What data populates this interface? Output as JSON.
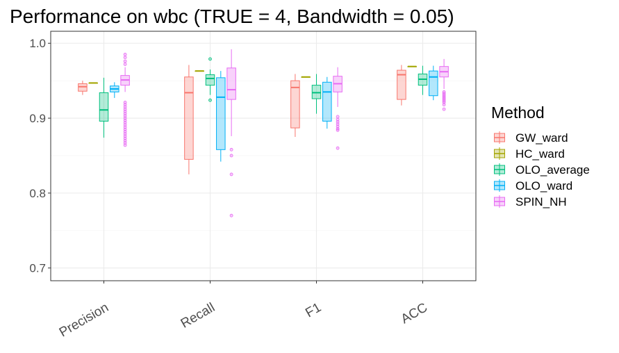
{
  "chart_data": {
    "type": "boxplot",
    "title": "Performance on wbc (TRUE = 4, Bandwidth = 0.05)",
    "xlabel": "",
    "ylabel": "",
    "ylim": [
      0.683,
      1.016
    ],
    "yticks": [
      "0.7",
      "0.8",
      "0.9",
      "1.0"
    ],
    "categories": [
      "Precision",
      "Recall",
      "F1",
      "ACC"
    ],
    "grid": true,
    "legend": {
      "title": "Method",
      "position": "right"
    },
    "series": [
      {
        "name": "GW_ward",
        "color": "#F8766D",
        "boxes": [
          {
            "min": 0.931,
            "q1": 0.936,
            "median": 0.942,
            "q3": 0.946,
            "max": 0.95,
            "outliers": []
          },
          {
            "min": 0.825,
            "q1": 0.845,
            "median": 0.934,
            "q3": 0.955,
            "max": 0.971,
            "outliers": []
          },
          {
            "min": 0.875,
            "q1": 0.887,
            "median": 0.941,
            "q3": 0.95,
            "max": 0.959,
            "outliers": []
          },
          {
            "min": 0.917,
            "q1": 0.925,
            "median": 0.958,
            "q3": 0.964,
            "max": 0.971,
            "outliers": []
          }
        ]
      },
      {
        "name": "HC_ward",
        "color": "#A3A500",
        "boxes": [
          {
            "min": 0.947,
            "q1": 0.947,
            "median": 0.947,
            "q3": 0.947,
            "max": 0.947,
            "outliers": []
          },
          {
            "min": 0.963,
            "q1": 0.963,
            "median": 0.963,
            "q3": 0.963,
            "max": 0.963,
            "outliers": []
          },
          {
            "min": 0.955,
            "q1": 0.955,
            "median": 0.955,
            "q3": 0.955,
            "max": 0.955,
            "outliers": []
          },
          {
            "min": 0.969,
            "q1": 0.969,
            "median": 0.969,
            "q3": 0.969,
            "max": 0.969,
            "outliers": []
          }
        ]
      },
      {
        "name": "OLO_average",
        "color": "#00BF7D",
        "boxes": [
          {
            "min": 0.874,
            "q1": 0.896,
            "median": 0.911,
            "q3": 0.934,
            "max": 0.954,
            "outliers": []
          },
          {
            "min": 0.931,
            "q1": 0.944,
            "median": 0.953,
            "q3": 0.958,
            "max": 0.965,
            "outliers": [
              0.979,
              0.924
            ]
          },
          {
            "min": 0.906,
            "q1": 0.926,
            "median": 0.934,
            "q3": 0.944,
            "max": 0.959,
            "outliers": []
          },
          {
            "min": 0.931,
            "q1": 0.944,
            "median": 0.952,
            "q3": 0.959,
            "max": 0.97,
            "outliers": []
          }
        ]
      },
      {
        "name": "OLO_ward",
        "color": "#00B0F6",
        "boxes": [
          {
            "min": 0.927,
            "q1": 0.935,
            "median": 0.939,
            "q3": 0.943,
            "max": 0.948,
            "outliers": []
          },
          {
            "min": 0.842,
            "q1": 0.858,
            "median": 0.928,
            "q3": 0.954,
            "max": 0.963,
            "outliers": []
          },
          {
            "min": 0.886,
            "q1": 0.896,
            "median": 0.935,
            "q3": 0.948,
            "max": 0.955,
            "outliers": []
          },
          {
            "min": 0.924,
            "q1": 0.93,
            "median": 0.955,
            "q3": 0.963,
            "max": 0.97,
            "outliers": []
          }
        ]
      },
      {
        "name": "SPIN_NH",
        "color": "#E76BF3",
        "boxes": [
          {
            "min": 0.935,
            "q1": 0.944,
            "median": 0.951,
            "q3": 0.957,
            "max": 0.968,
            "outliers": [
              0.985,
              0.981,
              0.976,
              0.972,
              0.921,
              0.918,
              0.915,
              0.912,
              0.909,
              0.906,
              0.903,
              0.9,
              0.897,
              0.894,
              0.891,
              0.888,
              0.885,
              0.882,
              0.879,
              0.876,
              0.873,
              0.87,
              0.867,
              0.864
            ]
          },
          {
            "min": 0.876,
            "q1": 0.925,
            "median": 0.938,
            "q3": 0.967,
            "max": 0.992,
            "outliers": [
              0.858,
              0.85,
              0.825,
              0.77
            ]
          },
          {
            "min": 0.915,
            "q1": 0.935,
            "median": 0.946,
            "q3": 0.956,
            "max": 0.968,
            "outliers": [
              0.902,
              0.898,
              0.895,
              0.892,
              0.889,
              0.886,
              0.884,
              0.86
            ]
          },
          {
            "min": 0.939,
            "q1": 0.955,
            "median": 0.962,
            "q3": 0.969,
            "max": 0.979,
            "outliers": [
              0.935,
              0.933,
              0.931,
              0.929,
              0.927,
              0.925,
              0.923,
              0.921,
              0.918,
              0.912
            ]
          }
        ]
      }
    ]
  }
}
